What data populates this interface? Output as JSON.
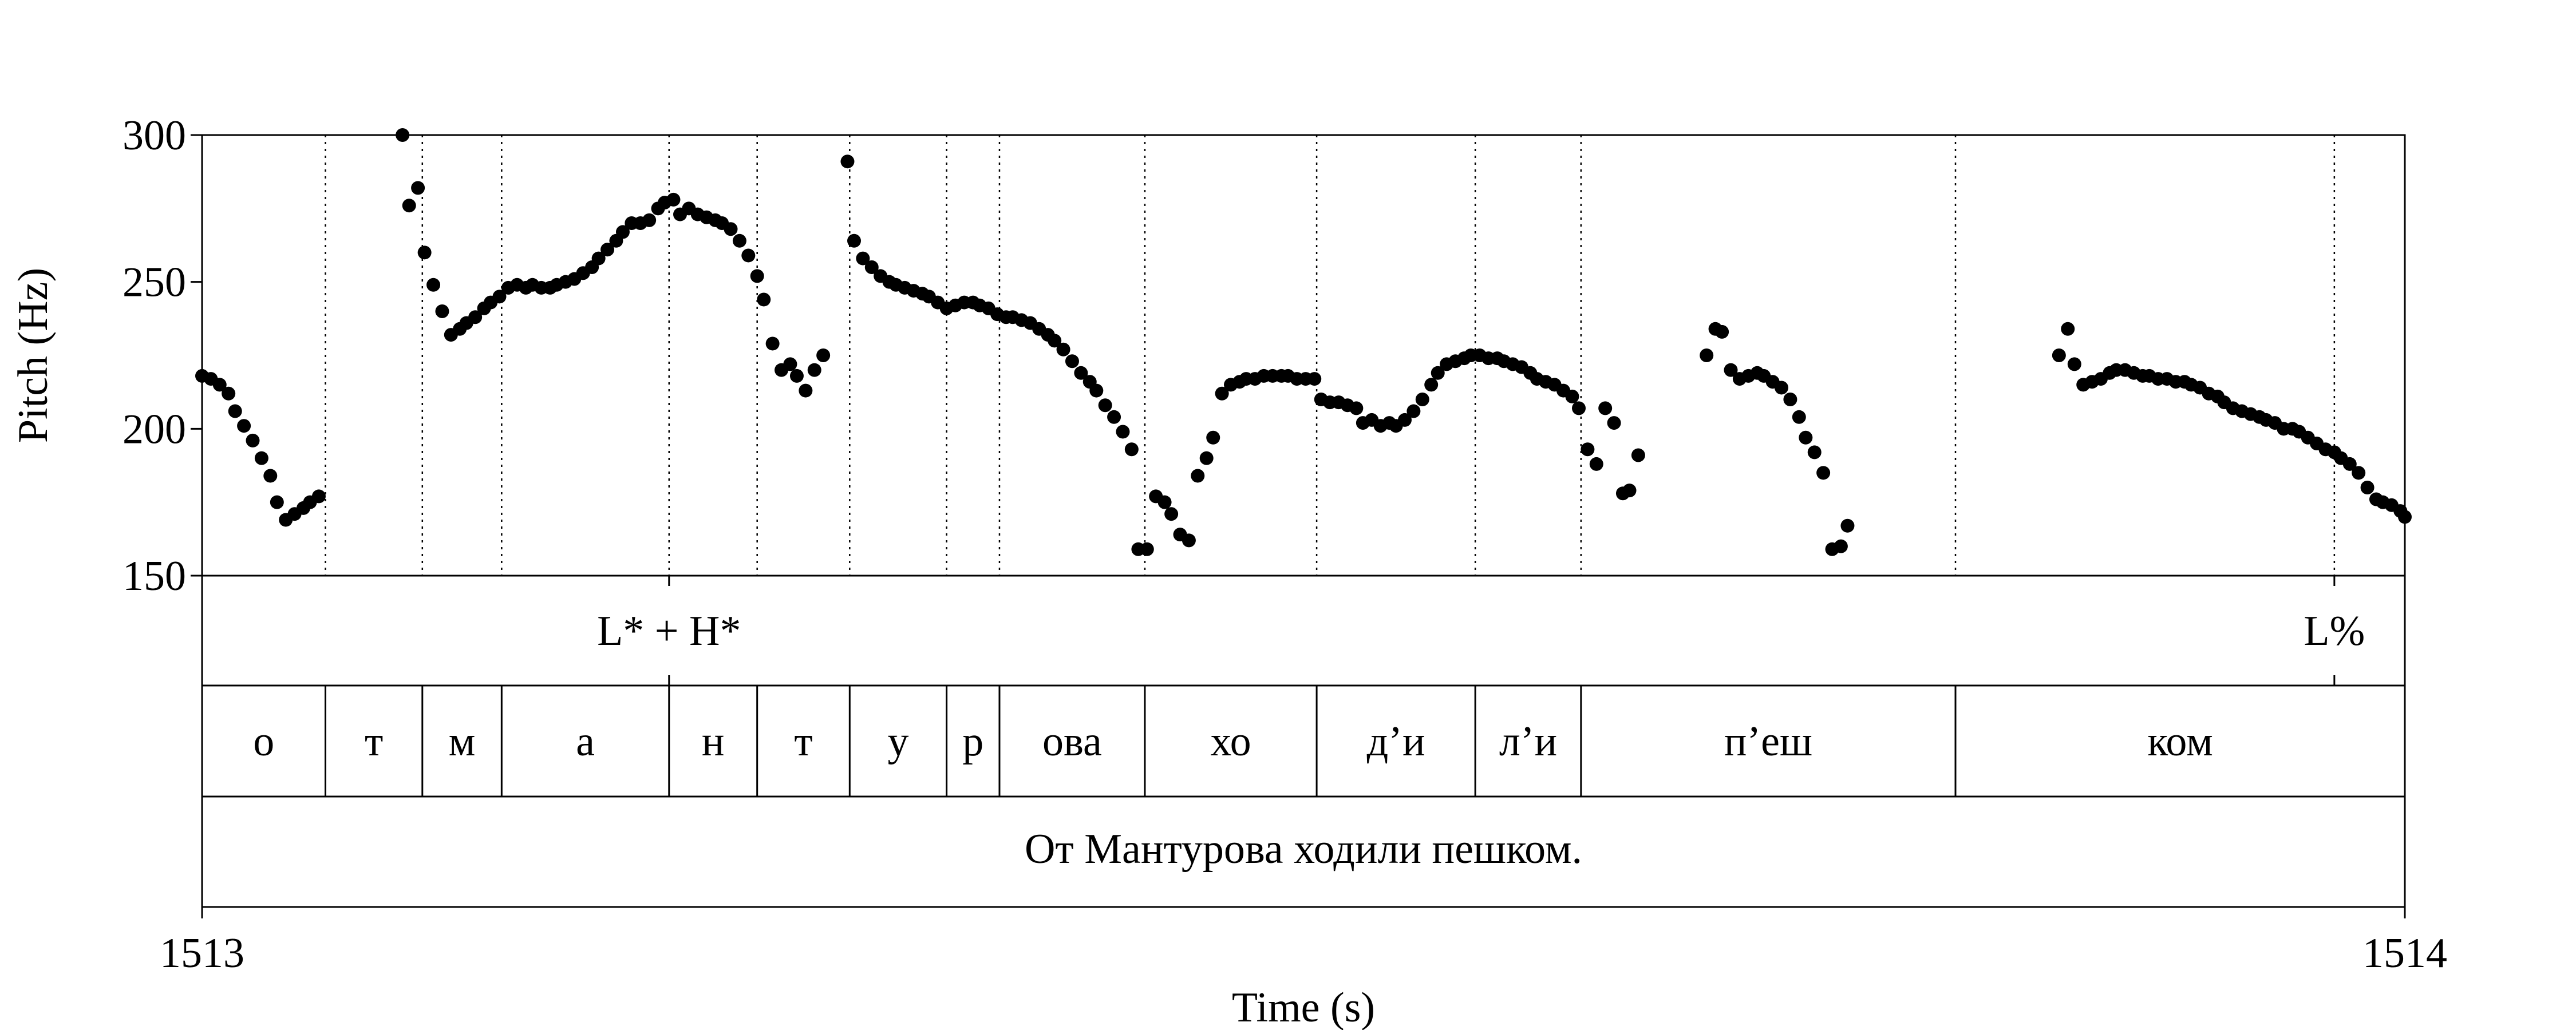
{
  "chart_data": {
    "type": "scatter",
    "xlabel": "Time (s)",
    "ylabel": "Pitch (Hz)",
    "xlim": [
      1513,
      1514
    ],
    "ylim": [
      150,
      300
    ],
    "x_ticks": [
      "1513",
      "1514"
    ],
    "y_ticks": [
      "300",
      "250",
      "200",
      "150"
    ],
    "grid": false,
    "pitch_points": [
      [
        1513.0,
        218
      ],
      [
        1513.004,
        217
      ],
      [
        1513.008,
        215
      ],
      [
        1513.012,
        212
      ],
      [
        1513.015,
        206
      ],
      [
        1513.019,
        201
      ],
      [
        1513.023,
        196
      ],
      [
        1513.027,
        190
      ],
      [
        1513.031,
        184
      ],
      [
        1513.034,
        175
      ],
      [
        1513.038,
        169
      ],
      [
        1513.042,
        171
      ],
      [
        1513.046,
        173
      ],
      [
        1513.049,
        175
      ],
      [
        1513.053,
        177
      ],
      [
        1513.091,
        300
      ],
      [
        1513.094,
        276
      ],
      [
        1513.098,
        282
      ],
      [
        1513.101,
        260
      ],
      [
        1513.105,
        249
      ],
      [
        1513.109,
        240
      ],
      [
        1513.113,
        232
      ],
      [
        1513.117,
        234
      ],
      [
        1513.12,
        236
      ],
      [
        1513.124,
        238
      ],
      [
        1513.128,
        241
      ],
      [
        1513.131,
        243
      ],
      [
        1513.135,
        245
      ],
      [
        1513.139,
        248
      ],
      [
        1513.143,
        249
      ],
      [
        1513.147,
        248
      ],
      [
        1513.15,
        249
      ],
      [
        1513.154,
        248
      ],
      [
        1513.158,
        248
      ],
      [
        1513.161,
        249
      ],
      [
        1513.165,
        250
      ],
      [
        1513.169,
        251
      ],
      [
        1513.173,
        253
      ],
      [
        1513.177,
        255
      ],
      [
        1513.18,
        258
      ],
      [
        1513.184,
        261
      ],
      [
        1513.188,
        264
      ],
      [
        1513.191,
        267
      ],
      [
        1513.195,
        270
      ],
      [
        1513.199,
        270
      ],
      [
        1513.203,
        271
      ],
      [
        1513.207,
        275
      ],
      [
        1513.21,
        277
      ],
      [
        1513.214,
        278
      ],
      [
        1513.217,
        273
      ],
      [
        1513.221,
        275
      ],
      [
        1513.225,
        273
      ],
      [
        1513.229,
        272
      ],
      [
        1513.233,
        271
      ],
      [
        1513.236,
        270
      ],
      [
        1513.24,
        268
      ],
      [
        1513.244,
        264
      ],
      [
        1513.248,
        259
      ],
      [
        1513.252,
        252
      ],
      [
        1513.255,
        244
      ],
      [
        1513.259,
        229
      ],
      [
        1513.263,
        220
      ],
      [
        1513.267,
        222
      ],
      [
        1513.27,
        218
      ],
      [
        1513.274,
        213
      ],
      [
        1513.278,
        220
      ],
      [
        1513.282,
        225
      ],
      [
        1513.293,
        291
      ],
      [
        1513.296,
        264
      ],
      [
        1513.3,
        258
      ],
      [
        1513.304,
        255
      ],
      [
        1513.308,
        252
      ],
      [
        1513.312,
        250
      ],
      [
        1513.315,
        249
      ],
      [
        1513.319,
        248
      ],
      [
        1513.323,
        247
      ],
      [
        1513.327,
        246
      ],
      [
        1513.33,
        245
      ],
      [
        1513.334,
        243
      ],
      [
        1513.338,
        241
      ],
      [
        1513.342,
        242
      ],
      [
        1513.346,
        243
      ],
      [
        1513.35,
        243
      ],
      [
        1513.353,
        242
      ],
      [
        1513.357,
        241
      ],
      [
        1513.361,
        239
      ],
      [
        1513.365,
        238
      ],
      [
        1513.368,
        238
      ],
      [
        1513.372,
        237
      ],
      [
        1513.376,
        236
      ],
      [
        1513.38,
        234
      ],
      [
        1513.384,
        232
      ],
      [
        1513.387,
        230
      ],
      [
        1513.391,
        227
      ],
      [
        1513.395,
        223
      ],
      [
        1513.399,
        219
      ],
      [
        1513.403,
        216
      ],
      [
        1513.406,
        213
      ],
      [
        1513.41,
        208
      ],
      [
        1513.414,
        204
      ],
      [
        1513.418,
        199
      ],
      [
        1513.422,
        193
      ],
      [
        1513.425,
        159
      ],
      [
        1513.429,
        159
      ],
      [
        1513.433,
        177
      ],
      [
        1513.437,
        175
      ],
      [
        1513.44,
        171
      ],
      [
        1513.444,
        164
      ],
      [
        1513.448,
        162
      ],
      [
        1513.452,
        184
      ],
      [
        1513.456,
        190
      ],
      [
        1513.459,
        197
      ],
      [
        1513.463,
        212
      ],
      [
        1513.467,
        215
      ],
      [
        1513.471,
        216
      ],
      [
        1513.474,
        217
      ],
      [
        1513.478,
        217
      ],
      [
        1513.482,
        218
      ],
      [
        1513.486,
        218
      ],
      [
        1513.49,
        218
      ],
      [
        1513.493,
        218
      ],
      [
        1513.497,
        217
      ],
      [
        1513.501,
        217
      ],
      [
        1513.505,
        217
      ],
      [
        1513.508,
        210
      ],
      [
        1513.512,
        209
      ],
      [
        1513.516,
        209
      ],
      [
        1513.52,
        208
      ],
      [
        1513.524,
        207
      ],
      [
        1513.527,
        202
      ],
      [
        1513.531,
        203
      ],
      [
        1513.535,
        201
      ],
      [
        1513.539,
        202
      ],
      [
        1513.542,
        201
      ],
      [
        1513.546,
        203
      ],
      [
        1513.55,
        206
      ],
      [
        1513.554,
        210
      ],
      [
        1513.558,
        215
      ],
      [
        1513.561,
        219
      ],
      [
        1513.565,
        222
      ],
      [
        1513.569,
        223
      ],
      [
        1513.573,
        224
      ],
      [
        1513.576,
        225
      ],
      [
        1513.58,
        225
      ],
      [
        1513.584,
        224
      ],
      [
        1513.588,
        224
      ],
      [
        1513.591,
        223
      ],
      [
        1513.595,
        222
      ],
      [
        1513.599,
        221
      ],
      [
        1513.603,
        219
      ],
      [
        1513.606,
        217
      ],
      [
        1513.61,
        216
      ],
      [
        1513.614,
        215
      ],
      [
        1513.618,
        213
      ],
      [
        1513.622,
        211
      ],
      [
        1513.625,
        207
      ],
      [
        1513.629,
        193
      ],
      [
        1513.633,
        188
      ],
      [
        1513.637,
        207
      ],
      [
        1513.641,
        202
      ],
      [
        1513.645,
        178
      ],
      [
        1513.648,
        179
      ],
      [
        1513.652,
        191
      ],
      [
        1513.683,
        225
      ],
      [
        1513.687,
        234
      ],
      [
        1513.69,
        233
      ],
      [
        1513.694,
        220
      ],
      [
        1513.698,
        217
      ],
      [
        1513.702,
        218
      ],
      [
        1513.706,
        219
      ],
      [
        1513.709,
        218
      ],
      [
        1513.713,
        216
      ],
      [
        1513.717,
        214
      ],
      [
        1513.721,
        210
      ],
      [
        1513.725,
        204
      ],
      [
        1513.728,
        197
      ],
      [
        1513.732,
        192
      ],
      [
        1513.736,
        185
      ],
      [
        1513.74,
        159
      ],
      [
        1513.744,
        160
      ],
      [
        1513.747,
        167
      ],
      [
        1513.843,
        225
      ],
      [
        1513.847,
        234
      ],
      [
        1513.85,
        222
      ],
      [
        1513.854,
        215
      ],
      [
        1513.858,
        216
      ],
      [
        1513.862,
        217
      ],
      [
        1513.866,
        219
      ],
      [
        1513.869,
        220
      ],
      [
        1513.873,
        220
      ],
      [
        1513.877,
        219
      ],
      [
        1513.881,
        218
      ],
      [
        1513.884,
        218
      ],
      [
        1513.888,
        217
      ],
      [
        1513.892,
        217
      ],
      [
        1513.896,
        216
      ],
      [
        1513.9,
        216
      ],
      [
        1513.903,
        215
      ],
      [
        1513.907,
        214
      ],
      [
        1513.911,
        212
      ],
      [
        1513.915,
        211
      ],
      [
        1513.918,
        209
      ],
      [
        1513.922,
        207
      ],
      [
        1513.926,
        206
      ],
      [
        1513.93,
        205
      ],
      [
        1513.934,
        204
      ],
      [
        1513.937,
        203
      ],
      [
        1513.941,
        202
      ],
      [
        1513.945,
        200
      ],
      [
        1513.949,
        200
      ],
      [
        1513.952,
        199
      ],
      [
        1513.956,
        197
      ],
      [
        1513.96,
        195
      ],
      [
        1513.964,
        193
      ],
      [
        1513.968,
        192
      ],
      [
        1513.971,
        190
      ],
      [
        1513.975,
        188
      ],
      [
        1513.979,
        185
      ],
      [
        1513.983,
        180
      ],
      [
        1513.987,
        176
      ],
      [
        1513.99,
        175
      ],
      [
        1513.994,
        174
      ],
      [
        1513.998,
        172
      ],
      [
        1514.0,
        170
      ]
    ],
    "tone_tier": {
      "boundaries": [
        1513.212,
        1513.968
      ],
      "labels": [
        {
          "text": "L* + H*",
          "x": 1513.212
        },
        {
          "text": "L%",
          "x": 1513.968
        }
      ]
    },
    "segment_tier": {
      "boundaries": [
        1513.0,
        1513.056,
        1513.1,
        1513.136,
        1513.212,
        1513.252,
        1513.294,
        1513.338,
        1513.362,
        1513.428,
        1513.506,
        1513.578,
        1513.626,
        1513.796,
        1514.0
      ],
      "labels": [
        "о",
        "т",
        "м",
        "а",
        "н",
        "т",
        "у",
        "р",
        "ова",
        "хо",
        "д’и",
        "л’и",
        "п’еш",
        "ком"
      ]
    },
    "sentence_tier": {
      "text": "От Мантурова ходили пешком."
    }
  }
}
